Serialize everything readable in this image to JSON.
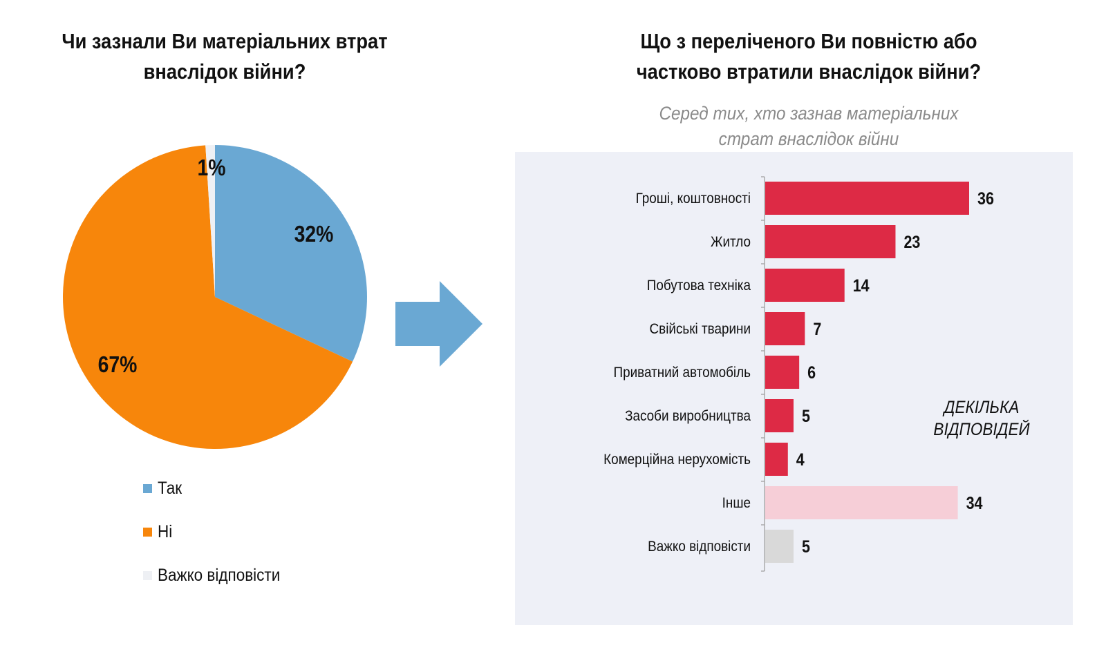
{
  "left": {
    "title_line1": "Чи зазнали Ви матеріальних втрат",
    "title_line2": "внаслідок війни?"
  },
  "right": {
    "title_line1": "Що з переліченого Ви повністю або",
    "title_line2": "частково втратили внаслідок війни?",
    "subtitle_line1": "Серед тих, хто зазнав матеріальних",
    "subtitle_line2": "страт внаслідок війни",
    "note_line1": "ДЕКІЛЬКА",
    "note_line2": "ВІДПОВІДЕЙ"
  },
  "arrow_icon": "arrow-right-icon",
  "chart_data": [
    {
      "type": "pie",
      "title": "Чи зазнали Ви матеріальних втрат внаслідок війни?",
      "start": "12 o'clock, clockwise",
      "slices": [
        {
          "label": "Так",
          "value": 32,
          "display": "32%",
          "color": "#6aa8d3"
        },
        {
          "label": "Ні",
          "value": 67,
          "display": "67%",
          "color": "#f7860b"
        },
        {
          "label": "Важко відповісти",
          "value": 1,
          "display": "1%",
          "color": "#eef0f4"
        }
      ],
      "legend": {
        "placement": "bottom",
        "entries": [
          "Так",
          "Ні",
          "Важко відповісти"
        ]
      }
    },
    {
      "type": "bar",
      "orientation": "horizontal",
      "title": "Що з переліченого Ви повністю або частково втратили внаслідок війни?",
      "subtitle": "Серед тих, хто зазнав матеріальних страт внаслідок війни",
      "annotation": "ДЕКІЛЬКА ВІДПОВІДЕЙ",
      "xlabel": "",
      "ylabel": "",
      "xlim": [
        0,
        36
      ],
      "grid": false,
      "categories": [
        "Гроші, коштовності",
        "Житло",
        "Побутова техніка",
        "Свійські тварини",
        "Приватний автомобіль",
        "Засоби виробництва",
        "Комерційна нерухомість",
        "Інше",
        "Важко відповісти"
      ],
      "values": [
        36,
        23,
        14,
        7,
        6,
        5,
        4,
        34,
        5
      ],
      "colors": [
        "#dd2a45",
        "#dd2a45",
        "#dd2a45",
        "#dd2a45",
        "#dd2a45",
        "#dd2a45",
        "#dd2a45",
        "#f6ced7",
        "#d9d9d9"
      ]
    }
  ]
}
